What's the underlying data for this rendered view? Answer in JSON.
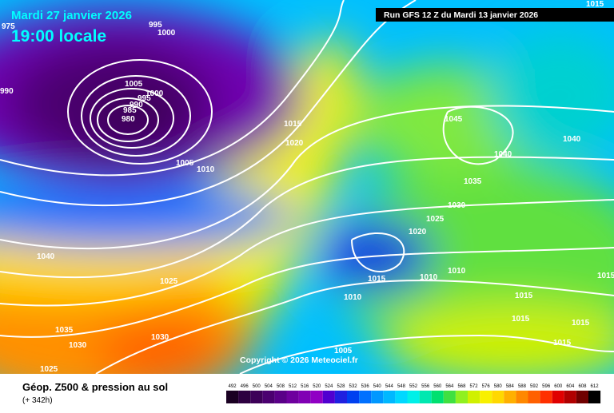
{
  "header": {
    "date": "Mardi 27 janvier 2026",
    "time": "19:00 locale",
    "run": "Run GFS 12 Z du Mardi 13 janvier 2026"
  },
  "map": {
    "copyright": "Copyright © 2026 Meteociel.fr",
    "isobar_labels": [
      995,
      1000,
      975,
      990,
      1005,
      1000,
      995,
      990,
      985,
      980,
      1005,
      1010,
      1015,
      1020,
      1045,
      1040,
      1040,
      1035,
      1030,
      1025,
      1020,
      1040,
      1025,
      1015,
      1010,
      1010,
      1015,
      1010,
      1015,
      1015,
      1015,
      1035,
      1030,
      1030,
      1005,
      1025,
      1015,
      1015
    ]
  },
  "footer": {
    "title": "Géop. Z500 & pression au sol",
    "lead": "(+ 342h)"
  },
  "legend": {
    "levels": [
      492,
      496,
      500,
      504,
      508,
      512,
      516,
      520,
      524,
      528,
      532,
      536,
      540,
      544,
      548,
      552,
      556,
      560,
      564,
      568,
      572,
      576,
      580,
      584,
      588,
      592,
      596,
      600,
      604,
      608,
      612
    ],
    "colors": [
      "#1a0022",
      "#2d0040",
      "#3d0058",
      "#4b0070",
      "#5a0088",
      "#6e009e",
      "#8000b4",
      "#9000c4",
      "#5000d0",
      "#2020e0",
      "#0040f0",
      "#0070ff",
      "#0098ff",
      "#00b8ff",
      "#00d8ff",
      "#00f0e8",
      "#00e8b0",
      "#00e070",
      "#40e040",
      "#90f020",
      "#d0f000",
      "#f8f000",
      "#ffd800",
      "#ffb000",
      "#ff8800",
      "#ff6000",
      "#ff3000",
      "#e00000",
      "#b00000",
      "#700000",
      "#000000"
    ]
  }
}
